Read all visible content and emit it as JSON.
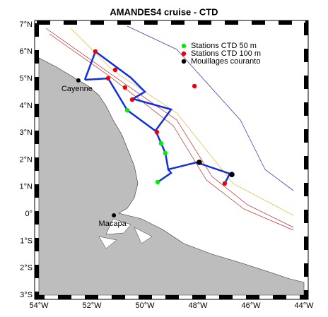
{
  "chart_data": {
    "type": "map",
    "title": "AMANDES4 cruise - CTD",
    "xlim": [
      -54,
      -44
    ],
    "ylim": [
      -3,
      7
    ],
    "xticks": [
      {
        "value": -54,
        "label": "54°W"
      },
      {
        "value": -52,
        "label": "52°W"
      },
      {
        "value": -50,
        "label": "50°W"
      },
      {
        "value": -48,
        "label": "48°W"
      },
      {
        "value": -46,
        "label": "46°W"
      },
      {
        "value": -44,
        "label": "44°W"
      }
    ],
    "yticks": [
      {
        "value": 7,
        "label": "7°N"
      },
      {
        "value": 6,
        "label": "6°N"
      },
      {
        "value": 5,
        "label": "5°N"
      },
      {
        "value": 4,
        "label": "4°N"
      },
      {
        "value": 3,
        "label": "3°N"
      },
      {
        "value": 2,
        "label": "2°N"
      },
      {
        "value": 1,
        "label": "1°N"
      },
      {
        "value": 0,
        "label": "0°"
      },
      {
        "value": -1,
        "label": "1°S"
      },
      {
        "value": -2,
        "label": "2°S"
      },
      {
        "value": -3,
        "label": "3°S"
      }
    ],
    "series": [
      {
        "name": "Stations CTD  50 m",
        "color": "#00ee00",
        "lon": [
          -50.67,
          -49.39,
          -49.23,
          -49.52
        ],
        "lat": [
          3.84,
          2.61,
          2.25,
          1.18
        ]
      },
      {
        "name": "Stations CTD  100 m",
        "color": "#ee0000",
        "lon": [
          -51.87,
          -51.12,
          -51.39,
          -50.75,
          -50.48,
          -48.13,
          -49.55,
          -46.99
        ],
        "lat": [
          6.01,
          5.33,
          5.02,
          4.68,
          4.23,
          4.73,
          3.03,
          1.13
        ]
      },
      {
        "name": "Mouillages couranto",
        "color": "#000000",
        "lon": [
          -47.95,
          -46.72
        ],
        "lat": [
          1.91,
          1.46
        ]
      }
    ],
    "places": [
      {
        "label": "Cayenne",
        "lon": -52.51,
        "lat": 4.94
      },
      {
        "label": "Macapa",
        "lon": -51.17,
        "lat": -0.05
      }
    ]
  }
}
